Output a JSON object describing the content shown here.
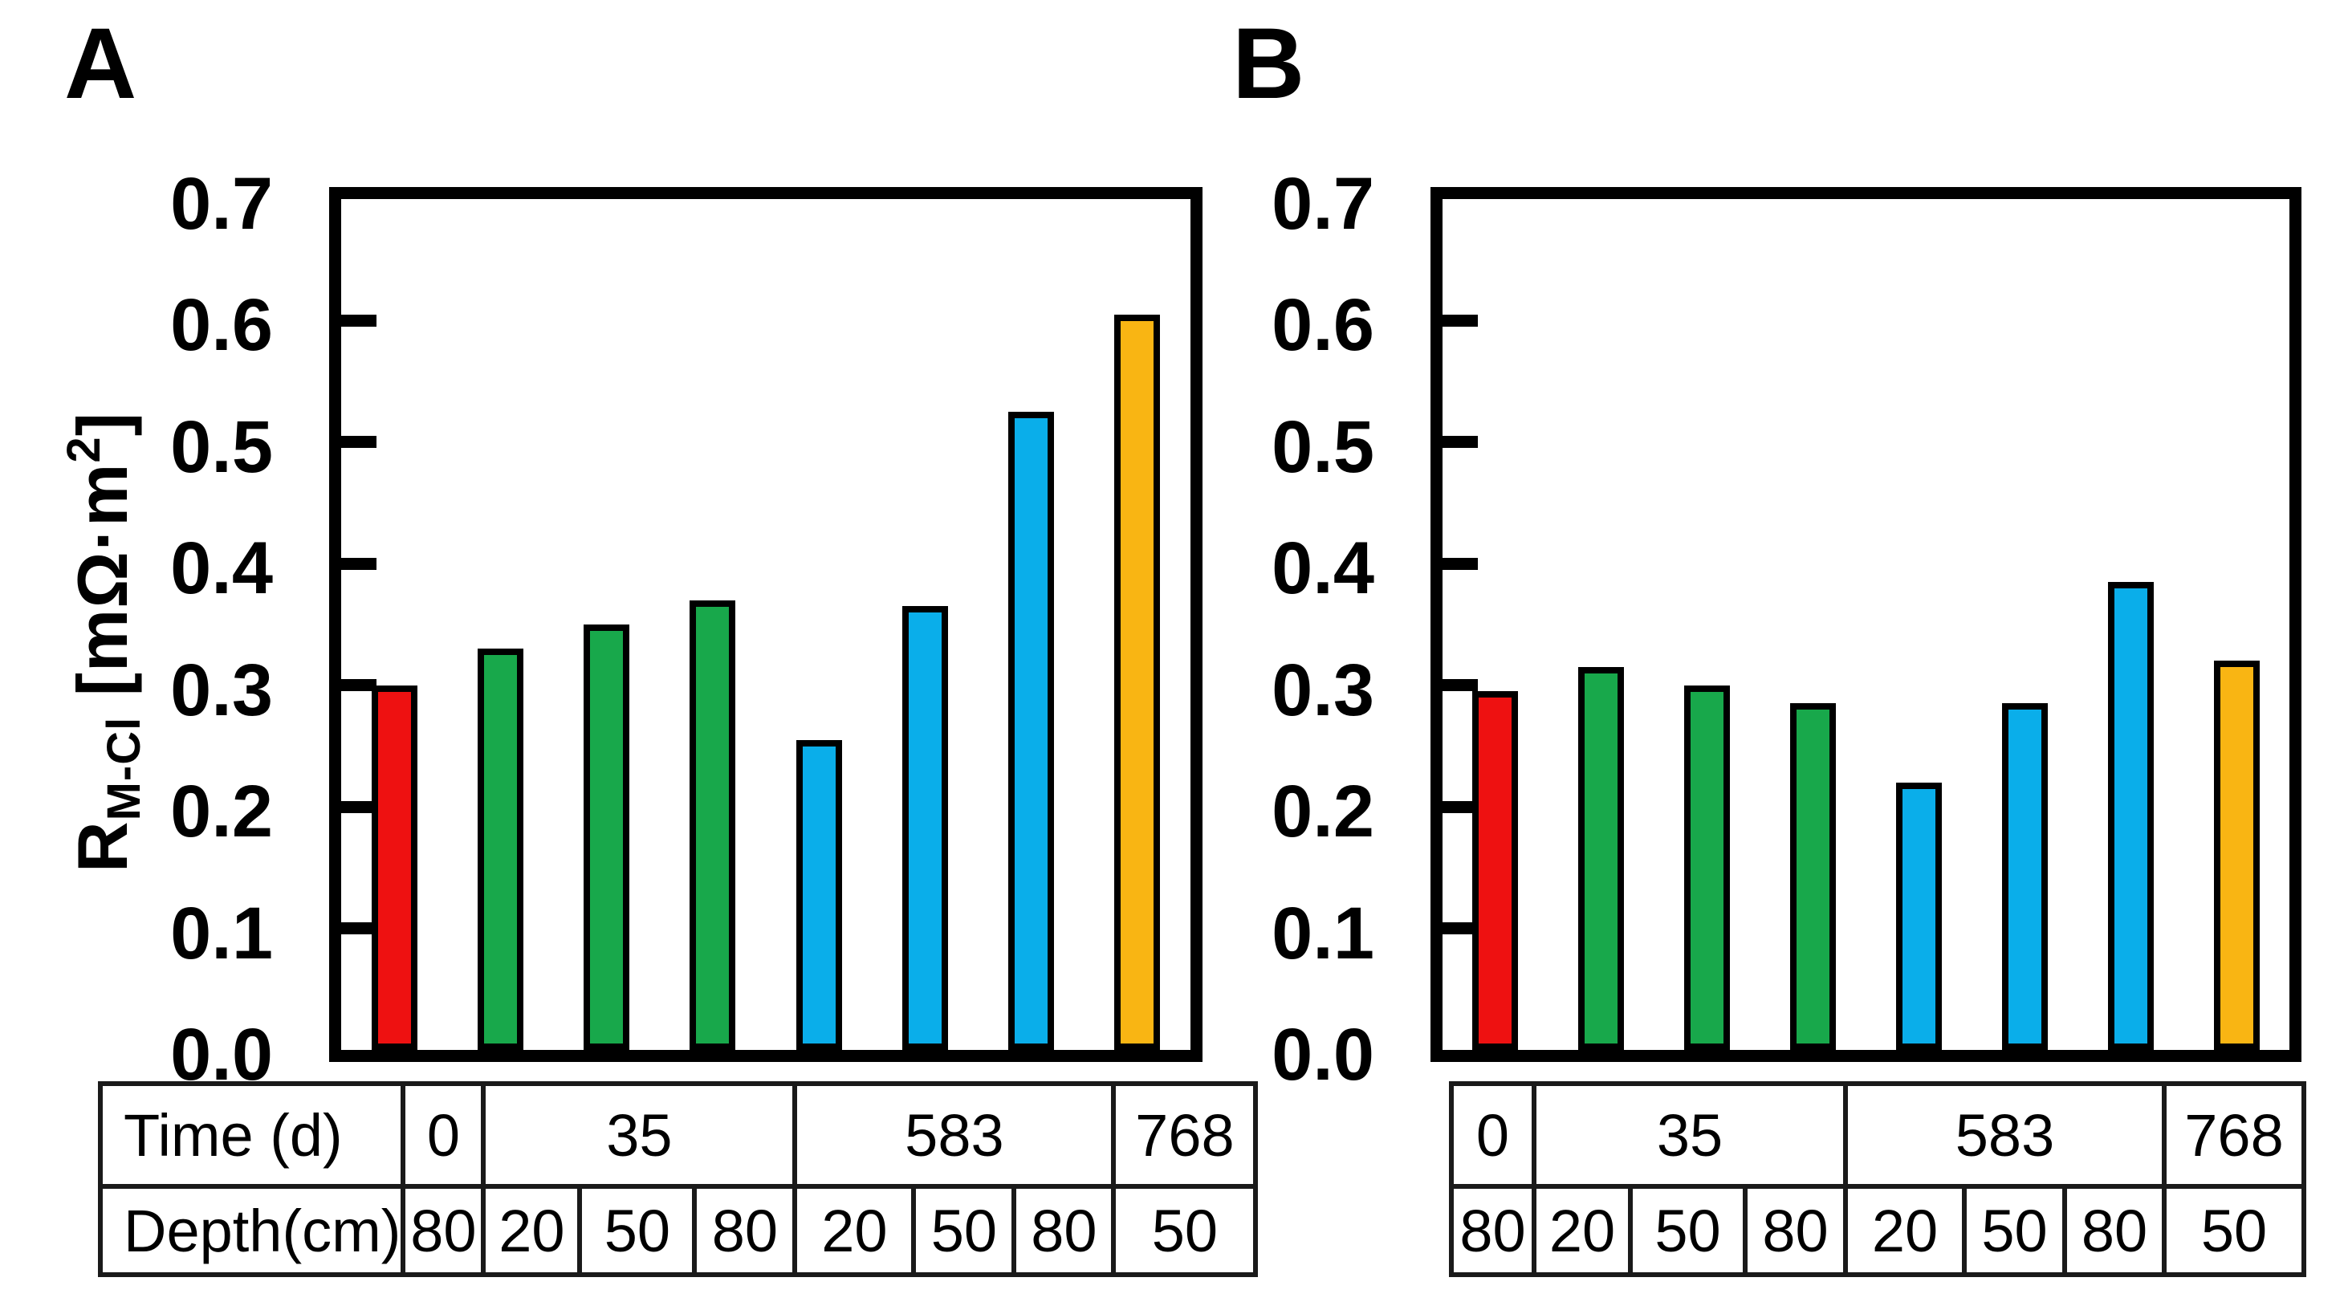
{
  "figure_colors": {
    "time_0_d": "#ee1111",
    "time_35_d": "#18a84b",
    "time_583_d": "#0aaeea",
    "time_768_d": "#f9b513",
    "outline": "#000000"
  },
  "axis": {
    "yticks": [
      "0.7",
      "0.6",
      "0.5",
      "0.4",
      "0.3",
      "0.2",
      "0.1",
      "0.0"
    ]
  },
  "panels": {
    "a": {
      "label": "A",
      "y_axis_title": {
        "base": "R",
        "sub": "M-Cl",
        "unit_pre": " [mΩ·m",
        "unit_sup": "2",
        "unit_post": "]"
      }
    },
    "b": {
      "label": "B"
    }
  },
  "tables": {
    "a": {
      "row_headers": [
        "Time (d)",
        "Depth(cm)"
      ],
      "time": [
        "0",
        "35",
        "583",
        "768"
      ],
      "depth": [
        "80",
        "20",
        "50",
        "80",
        "20",
        "50",
        "80",
        "50"
      ]
    },
    "b": {
      "time": [
        "0",
        "35",
        "583",
        "768"
      ],
      "depth": [
        "80",
        "20",
        "50",
        "80",
        "20",
        "50",
        "80",
        "50"
      ]
    }
  },
  "chart_data": [
    {
      "type": "bar",
      "panel": "A",
      "title": "",
      "xlabel": "",
      "ylabel": "R M-Cl [mOhm·m2]",
      "ylim": [
        0,
        0.7
      ],
      "yticks": [
        0.0,
        0.1,
        0.2,
        0.3,
        0.4,
        0.5,
        0.6,
        0.7
      ],
      "grid": false,
      "legend": "none",
      "time_d": [
        0,
        35,
        35,
        35,
        583,
        583,
        583,
        768
      ],
      "depth_cm": [
        80,
        20,
        50,
        80,
        20,
        50,
        80,
        50
      ],
      "values": [
        0.3,
        0.33,
        0.35,
        0.37,
        0.255,
        0.365,
        0.525,
        0.605
      ],
      "colors": [
        "#ee1111",
        "#18a84b",
        "#18a84b",
        "#18a84b",
        "#0aaeea",
        "#0aaeea",
        "#0aaeea",
        "#f9b513"
      ]
    },
    {
      "type": "bar",
      "panel": "B",
      "title": "",
      "xlabel": "",
      "ylabel": "",
      "ylim": [
        0,
        0.7
      ],
      "yticks": [
        0.0,
        0.1,
        0.2,
        0.3,
        0.4,
        0.5,
        0.6,
        0.7
      ],
      "grid": false,
      "legend": "none",
      "time_d": [
        0,
        35,
        35,
        35,
        583,
        583,
        583,
        768
      ],
      "depth_cm": [
        80,
        20,
        50,
        80,
        20,
        50,
        80,
        50
      ],
      "values": [
        0.295,
        0.315,
        0.3,
        0.285,
        0.22,
        0.285,
        0.385,
        0.32
      ],
      "colors": [
        "#ee1111",
        "#18a84b",
        "#18a84b",
        "#18a84b",
        "#0aaeea",
        "#0aaeea",
        "#0aaeea",
        "#f9b513"
      ]
    }
  ]
}
